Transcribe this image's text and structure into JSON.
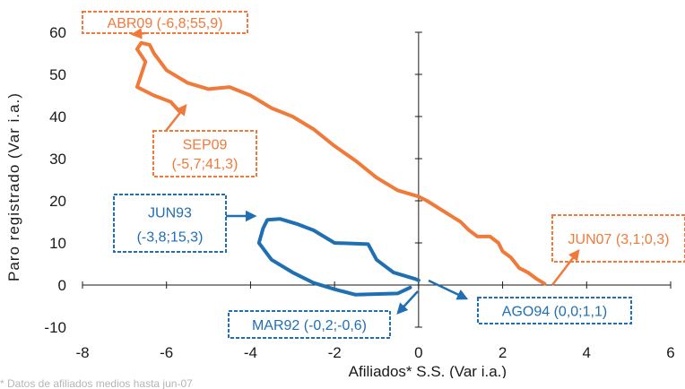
{
  "chart_data": {
    "type": "line",
    "xlabel": "Afiliados* S.S. (Var i.a.)",
    "ylabel": "Paro registrado (Var i.a.)",
    "xlim": [
      -8,
      6
    ],
    "ylim": [
      -10,
      60
    ],
    "x_ticks": [
      "-8",
      "-6",
      "-4",
      "-2",
      "0",
      "2",
      "4",
      "6"
    ],
    "y_ticks": [
      "-10",
      "0",
      "10",
      "20",
      "30",
      "40",
      "50",
      "60"
    ],
    "grid": false,
    "series": [
      {
        "color": "#f07a3a",
        "points": [
          [
            3.0,
            0.3
          ],
          [
            2.8,
            1.5
          ],
          [
            2.6,
            3.0
          ],
          [
            2.4,
            4.0
          ],
          [
            2.2,
            6.5
          ],
          [
            2.0,
            8.0
          ],
          [
            1.9,
            10.0
          ],
          [
            1.7,
            11.5
          ],
          [
            1.4,
            11.5
          ],
          [
            1.2,
            13.0
          ],
          [
            1.0,
            15.0
          ],
          [
            0.6,
            17.5
          ],
          [
            0.2,
            20.0
          ],
          [
            0.0,
            21.0
          ],
          [
            -0.5,
            22.5
          ],
          [
            -1.0,
            25.5
          ],
          [
            -1.5,
            29.5
          ],
          [
            -2.0,
            33.0
          ],
          [
            -2.5,
            37.0
          ],
          [
            -3.0,
            40.0
          ],
          [
            -3.5,
            42.0
          ],
          [
            -4.0,
            45.0
          ],
          [
            -4.5,
            47.0
          ],
          [
            -5.0,
            46.5
          ],
          [
            -5.5,
            48.0
          ],
          [
            -6.0,
            51.0
          ],
          [
            -6.3,
            55.0
          ],
          [
            -6.4,
            57.0
          ],
          [
            -6.6,
            57.5
          ],
          [
            -6.7,
            56.0
          ],
          [
            -6.5,
            53.0
          ],
          [
            -6.6,
            50.0
          ],
          [
            -6.7,
            47.0
          ],
          [
            -6.3,
            45.0
          ],
          [
            -5.9,
            43.5
          ],
          [
            -5.7,
            41.3
          ]
        ]
      },
      {
        "color": "#1f6fb2",
        "points": [
          [
            -0.2,
            -0.6
          ],
          [
            -0.5,
            -2.0
          ],
          [
            -1.5,
            -2.3
          ],
          [
            -2.0,
            -1.0
          ],
          [
            -2.5,
            0.5
          ],
          [
            -3.0,
            3.0
          ],
          [
            -3.5,
            6.0
          ],
          [
            -3.8,
            10.0
          ],
          [
            -3.7,
            13.5
          ],
          [
            -3.6,
            15.5
          ],
          [
            -3.3,
            15.7
          ],
          [
            -2.9,
            14.5
          ],
          [
            -2.5,
            13.0
          ],
          [
            -2.0,
            10.0
          ],
          [
            -1.2,
            9.7
          ],
          [
            -1.0,
            6.0
          ],
          [
            -0.6,
            3.0
          ],
          [
            -0.1,
            1.5
          ],
          [
            0.0,
            1.1
          ]
        ]
      }
    ],
    "annotations": [
      {
        "text": "ABR09 (-6,8;55,9)",
        "color": "#f07a3a",
        "point": [
          -6.8,
          55.9
        ]
      },
      {
        "text": "SEP09",
        "text2": "(-5,7;41,3)",
        "color": "#f07a3a",
        "point": [
          -5.7,
          41.3
        ]
      },
      {
        "text": "JUN07 (3,1;0,3)",
        "color": "#f07a3a",
        "point": [
          3.1,
          0.3
        ]
      },
      {
        "text": "JUN93",
        "text2": "(-3,8;15,3)",
        "color": "#1f6fb2",
        "point": [
          -3.8,
          15.3
        ]
      },
      {
        "text": "MAR92 (-0,2;-0,6)",
        "color": "#1f6fb2",
        "point": [
          -0.2,
          -0.6
        ]
      },
      {
        "text": "AGO94 (0,0;1,1)",
        "color": "#1f6fb2",
        "point": [
          0.0,
          1.1
        ]
      }
    ],
    "footnote": "* Datos de afiliados medios hasta jun-07"
  }
}
